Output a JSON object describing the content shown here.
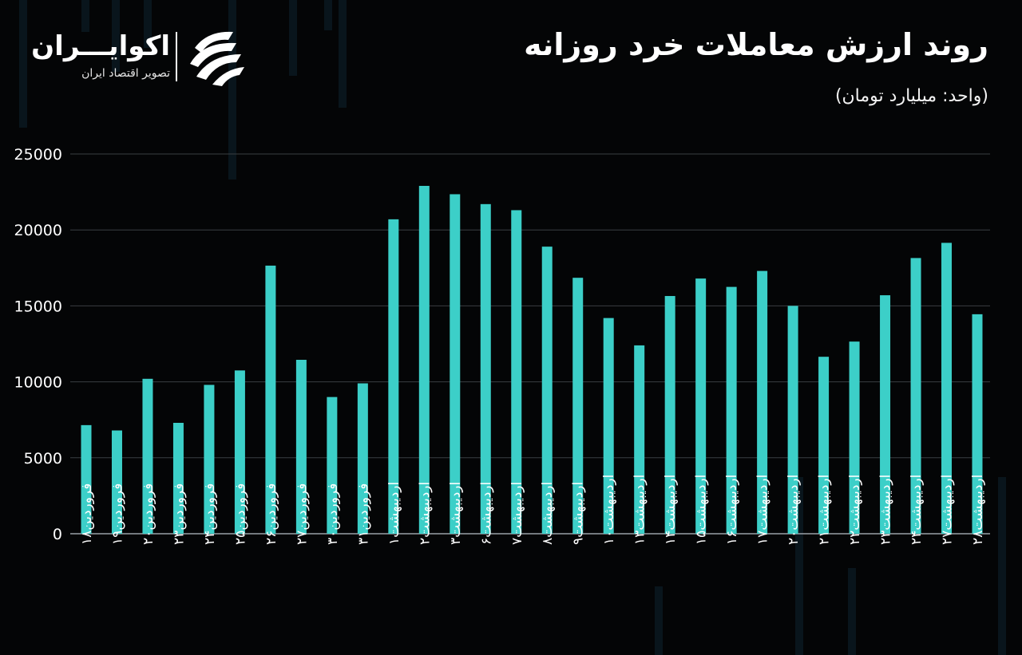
{
  "header": {
    "title": "روند ارزش معاملات خرد روزانه",
    "subtitle": "(واحد: میلیارد تومان)"
  },
  "brand": {
    "name": "اکوایـــران",
    "tagline": "تصویر اقتصاد ایران",
    "icon": "ekoiran-logo-icon"
  },
  "colors": {
    "background": "#040506",
    "bar": "#3ccfc8",
    "grid": "#3a3e42",
    "text": "#ffffff"
  },
  "chart_data": {
    "type": "bar",
    "title": "روند ارزش معاملات خرد روزانه",
    "ylabel": "",
    "xlabel": "",
    "ylim": [
      0,
      25000
    ],
    "yticks": [
      0,
      5000,
      10000,
      15000,
      20000,
      25000
    ],
    "ytick_labels": [
      "0",
      "5000",
      "10000",
      "15000",
      "20000",
      "25000"
    ],
    "grid": true,
    "categories": [
      "فروردین۱۸",
      "فروردین۱۹",
      "فروردین۲۰",
      "فروردین۲۳",
      "فروردین۲۴",
      "فروردین۲۵",
      "فروردین۲۶",
      "فروردین۲۷",
      "فروردین۳۰",
      "فروردین۳۱",
      "اردیبهشت۱",
      "اردیبهشت۲",
      "اردیبهشت۳",
      "اردیبهشت۶",
      "اردیبهشت۷",
      "اردیبهشت۸",
      "اردیبهشت۹",
      "اردیبهشت۱۰",
      "اردیبهشت۱۳",
      "اردیبهشت۱۴",
      "اردیبهشت۱۵",
      "اردیبهشت۱۶",
      "اردیبهشت۱۷",
      "اردیبهشت۲۰",
      "اردیبهشت۲۱",
      "اردیبهشت۲۲",
      "اردیبهشت۲۳",
      "اردیبهشت۲۴",
      "اردیبهشت۲۷",
      "اردیبهشت۲۸"
    ],
    "values": [
      7150,
      6800,
      10200,
      7300,
      9800,
      10750,
      17650,
      11450,
      9000,
      9900,
      20700,
      22900,
      22350,
      21700,
      21300,
      18900,
      16850,
      14200,
      12400,
      15650,
      16800,
      16250,
      17300,
      15000,
      11650,
      12650,
      15700,
      18150,
      19150,
      14450
    ]
  }
}
